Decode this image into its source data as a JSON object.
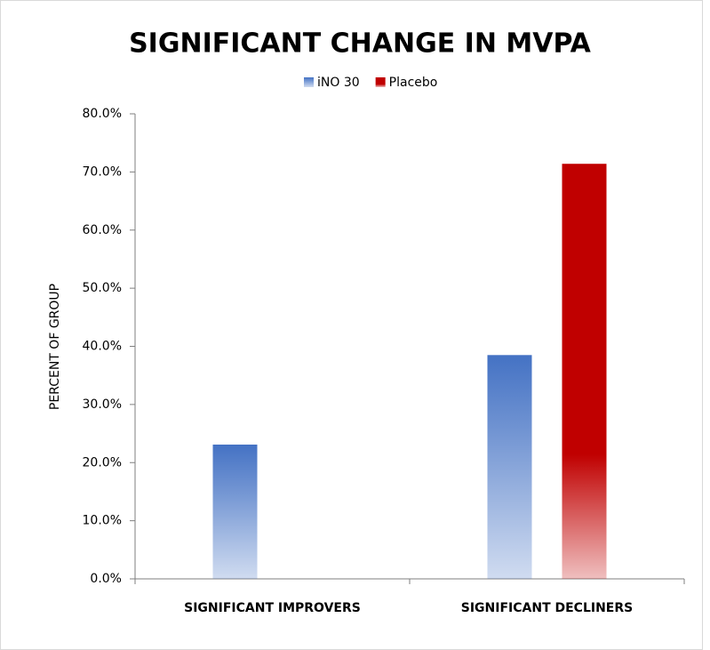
{
  "chart_data": {
    "type": "bar",
    "title": "SIGNIFICANT CHANGE IN MVPA",
    "y_label": "PERCENT OF GROUP",
    "categories": [
      "SIGNIFICANT IMPROVERS",
      "SIGNIFICANT DECLINERS"
    ],
    "series": [
      {
        "name": "iNO 30",
        "color": "#4472c4",
        "values": [
          23.1,
          38.5
        ]
      },
      {
        "name": "Placebo",
        "color": "#c00000",
        "values": [
          0,
          71.4
        ]
      }
    ],
    "ylim": [
      0,
      80
    ],
    "yticks": [
      {
        "value": 0,
        "label": "0.0%"
      },
      {
        "value": 10,
        "label": "10.0%"
      },
      {
        "value": 20,
        "label": "20.0%"
      },
      {
        "value": 30,
        "label": "30.0%"
      },
      {
        "value": 40,
        "label": "40.0%"
      },
      {
        "value": 50,
        "label": "50.0%"
      },
      {
        "value": 60,
        "label": "60.0%"
      },
      {
        "value": 70,
        "label": "70.0%"
      },
      {
        "value": 80,
        "label": "80.0%"
      }
    ],
    "legend": "top"
  }
}
